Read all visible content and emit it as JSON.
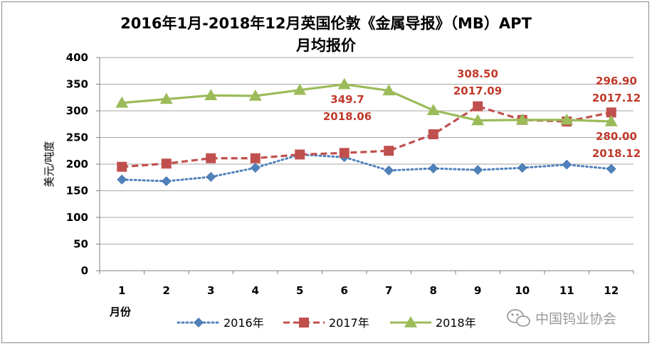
{
  "chart_data": {
    "type": "line",
    "title_line1": "2016年1月-2018年12月英国伦敦《金属导报》（MB）APT",
    "title_line2": "月均报价",
    "ylabel": "美元/吨度",
    "xlabel": "月份",
    "ylim": [
      0,
      400
    ],
    "ytick_step": 50,
    "categories": [
      "1",
      "2",
      "3",
      "4",
      "5",
      "6",
      "7",
      "8",
      "9",
      "10",
      "11",
      "12"
    ],
    "grid": "horizontal",
    "legend_position": "bottom",
    "series": [
      {
        "name": "2016年",
        "color": "#4f81bd",
        "marker": "diamond",
        "dash": "dotted",
        "values": [
          171,
          168,
          176,
          193,
          218,
          213,
          188,
          192,
          189,
          193,
          199,
          191
        ]
      },
      {
        "name": "2017年",
        "color": "#c0504d",
        "marker": "square",
        "dash": "dashed",
        "values": [
          195,
          201,
          211,
          211,
          218,
          221,
          225,
          256,
          308.5,
          283,
          280,
          296.9
        ]
      },
      {
        "name": "2018年",
        "color": "#9bbb59",
        "marker": "triangle",
        "dash": "solid",
        "values": [
          315,
          322,
          329,
          328,
          339,
          349.7,
          338,
          301,
          282,
          283,
          283,
          280
        ]
      }
    ],
    "annotations": [
      {
        "value_label": "349.7",
        "period_label": "2018.06"
      },
      {
        "value_label": "308.50",
        "period_label": "2017.09"
      },
      {
        "value_label": "296.90",
        "period_label": "2017.12"
      },
      {
        "value_label": "280.00",
        "period_label": "2018.12"
      }
    ]
  },
  "watermark": {
    "text": "中国钨业协会",
    "icon": "wechat-icon"
  }
}
